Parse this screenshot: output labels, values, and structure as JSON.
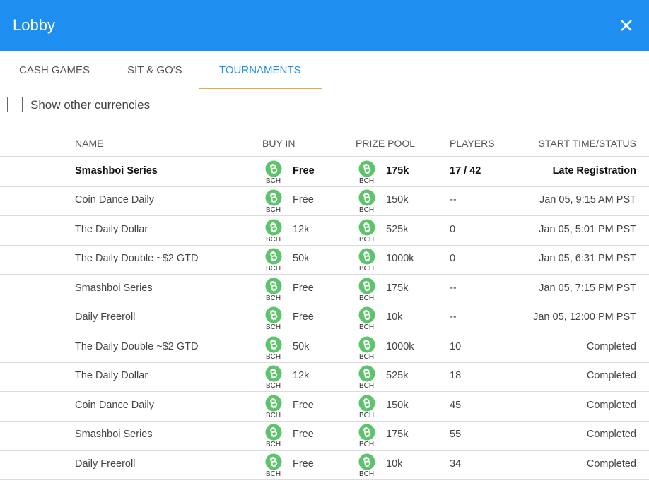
{
  "header": {
    "title": "Lobby"
  },
  "tabs": [
    "CASH GAMES",
    "SIT & GO'S",
    "TOURNAMENTS"
  ],
  "filter": {
    "label": "Show other currencies"
  },
  "table": {
    "columns": [
      "NAME",
      "BUY IN",
      "PRIZE POOL",
      "PLAYERS",
      "START TIME/STATUS"
    ],
    "rows": [
      {
        "name": "Smashboi Series",
        "buyin_currency": "BCH",
        "buyin": "Free",
        "prize_currency": "BCH",
        "prize": "175k",
        "players": "17 / 42",
        "status": "Late Registration"
      },
      {
        "name": "Coin Dance Daily",
        "buyin_currency": "BCH",
        "buyin": "Free",
        "prize_currency": "BCH",
        "prize": "150k",
        "players": "--",
        "status": "Jan 05, 9:15 AM PST"
      },
      {
        "name": "The Daily Dollar",
        "buyin_currency": "BCH",
        "buyin": "12k",
        "prize_currency": "BCH",
        "prize": "525k",
        "players": "0",
        "status": "Jan 05, 5:01 PM PST"
      },
      {
        "name": "The Daily Double ~$2 GTD",
        "buyin_currency": "BCH",
        "buyin": "50k",
        "prize_currency": "BCH",
        "prize": "1000k",
        "players": "0",
        "status": "Jan 05, 6:31 PM PST"
      },
      {
        "name": "Smashboi Series",
        "buyin_currency": "BCH",
        "buyin": "Free",
        "prize_currency": "BCH",
        "prize": "175k",
        "players": "--",
        "status": "Jan 05, 7:15 PM PST"
      },
      {
        "name": "Daily Freeroll",
        "buyin_currency": "BCH",
        "buyin": "Free",
        "prize_currency": "BCH",
        "prize": "10k",
        "players": "--",
        "status": "Jan 05, 12:00 PM PST"
      },
      {
        "name": "The Daily Double ~$2 GTD",
        "buyin_currency": "BCH",
        "buyin": "50k",
        "prize_currency": "BCH",
        "prize": "1000k",
        "players": "10",
        "status": "Completed"
      },
      {
        "name": "The Daily Dollar",
        "buyin_currency": "BCH",
        "buyin": "12k",
        "prize_currency": "BCH",
        "prize": "525k",
        "players": "18",
        "status": "Completed"
      },
      {
        "name": "Coin Dance Daily",
        "buyin_currency": "BCH",
        "buyin": "Free",
        "prize_currency": "BCH",
        "prize": "150k",
        "players": "45",
        "status": "Completed"
      },
      {
        "name": "Smashboi Series",
        "buyin_currency": "BCH",
        "buyin": "Free",
        "prize_currency": "BCH",
        "prize": "175k",
        "players": "55",
        "status": "Completed"
      },
      {
        "name": "Daily Freeroll",
        "buyin_currency": "BCH",
        "buyin": "Free",
        "prize_currency": "BCH",
        "prize": "10k",
        "players": "34",
        "status": "Completed"
      }
    ]
  }
}
